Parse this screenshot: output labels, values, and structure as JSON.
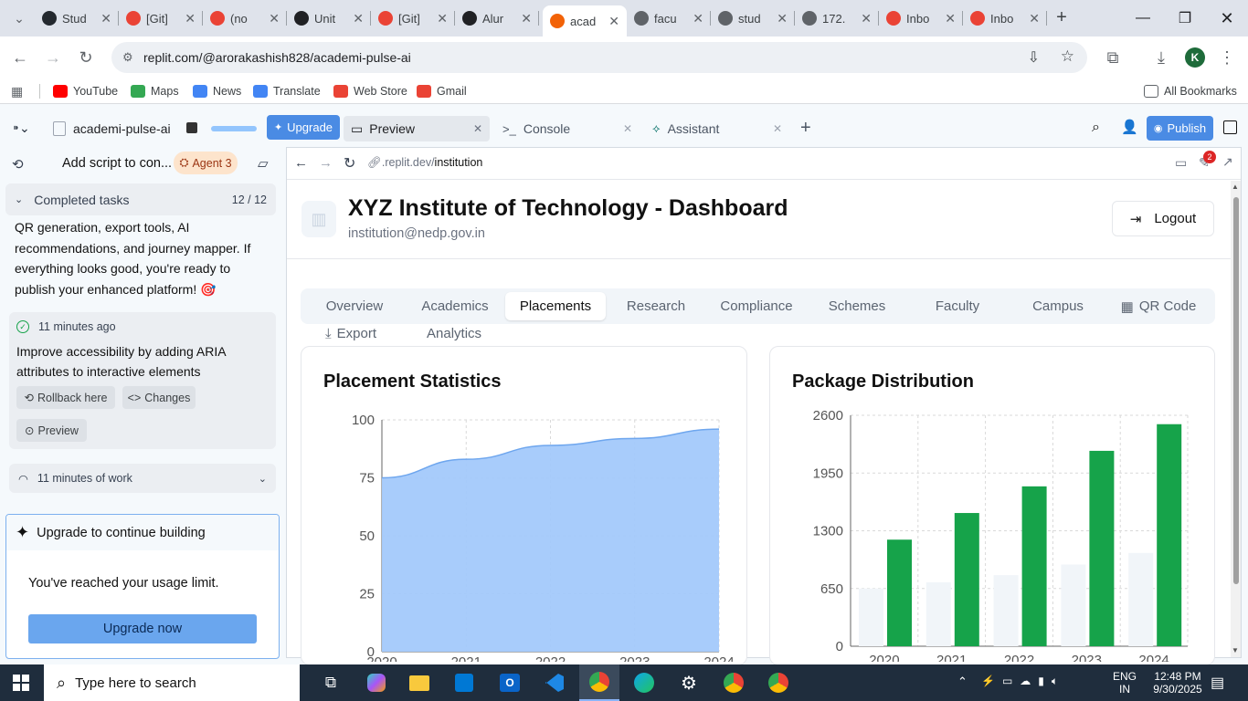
{
  "browser": {
    "tabs": [
      {
        "label": "Stud",
        "icon": "github-icon",
        "color": "#24292f"
      },
      {
        "label": "[Git]",
        "icon": "gmail-icon",
        "color": "#ea4335"
      },
      {
        "label": "(no",
        "icon": "gmail-icon",
        "color": "#ea4335"
      },
      {
        "label": "Unit",
        "icon": "openai-icon",
        "color": "#202124"
      },
      {
        "label": "[Git]",
        "icon": "gmail-icon",
        "color": "#ea4335"
      },
      {
        "label": "Alur",
        "icon": "openai-icon",
        "color": "#202124"
      },
      {
        "label": "acad",
        "icon": "replit-icon",
        "color": "#f26207"
      },
      {
        "label": "facu",
        "icon": "globe-icon",
        "color": "#5f6368"
      },
      {
        "label": "stud",
        "icon": "globe-icon",
        "color": "#5f6368"
      },
      {
        "label": "172.",
        "icon": "globe-icon",
        "color": "#5f6368"
      },
      {
        "label": "Inbo",
        "icon": "gmail-icon",
        "color": "#ea4335"
      },
      {
        "label": "Inbo",
        "icon": "gmail-icon",
        "color": "#ea4335"
      }
    ],
    "url": "replit.com/@arorakashish828/academi-pulse-ai",
    "profile_initial": "K",
    "bookmarks": [
      {
        "label": "YouTube",
        "color": "#ff0000"
      },
      {
        "label": "Maps",
        "color": "#34a853"
      },
      {
        "label": "News",
        "color": "#4285f4"
      },
      {
        "label": "Translate",
        "color": "#4285f4"
      },
      {
        "label": "Web Store",
        "color": "#ea4335"
      },
      {
        "label": "Gmail",
        "color": "#ea4335"
      }
    ],
    "all_bookmarks": "All Bookmarks"
  },
  "replit": {
    "project_name": "academi-pulse-ai",
    "upgrade": "Upgrade",
    "tabs": [
      "Preview",
      "Console",
      "Assistant"
    ],
    "publish": "Publish",
    "chat_title": "Add script to con...",
    "agent_badge": "Agent 3",
    "completed_tasks": "Completed tasks",
    "completed_count": "12 / 12",
    "message": "QR generation, export tools, AI recommendations, and journey mapper. If everything looks good, you're ready to publish your enhanced platform! 🎯",
    "checkpoint": {
      "time": "11 minutes ago",
      "title": "Improve accessibility by adding ARIA attributes to interactive elements",
      "rollback": "Rollback here",
      "changes": "Changes",
      "preview": "Preview"
    },
    "work_summary": "11 minutes of work",
    "upgrade_card": {
      "title": "Upgrade to continue building",
      "body": "You've reached your usage limit.",
      "button": "Upgrade now"
    },
    "preview_url_host": ".replit.dev/",
    "preview_url_path": "institution",
    "notif_count": "2"
  },
  "dashboard": {
    "title": "XYZ Institute of Technology - Dashboard",
    "email": "institution@nedp.gov.in",
    "logout": "Logout",
    "tabs": [
      "Overview",
      "Academics",
      "Placements",
      "Research",
      "Compliance",
      "Schemes",
      "Faculty",
      "Campus",
      "QR Code"
    ],
    "active_tab": "Placements",
    "tabs_row2": [
      "Export",
      "Analytics"
    ],
    "accent": "#16a34a",
    "area_color": "#a3c9fb"
  },
  "chart_data": [
    {
      "type": "area",
      "title": "Placement Statistics",
      "x": [
        "2020",
        "2021",
        "2022",
        "2023",
        "2024"
      ],
      "series": [
        {
          "values": [
            75,
            83,
            89,
            92,
            96
          ]
        }
      ],
      "ylim": [
        0,
        100
      ],
      "yticks": [
        0,
        25,
        50,
        75,
        100
      ],
      "grid": true
    },
    {
      "type": "bar",
      "title": "Package Distribution",
      "categories": [
        "2020",
        "2021",
        "2022",
        "2023",
        "2024"
      ],
      "series": [
        {
          "values": [
            650,
            720,
            800,
            920,
            1050
          ],
          "color": "#f1f5f9"
        },
        {
          "values": [
            1200,
            1500,
            1800,
            2200,
            2500
          ],
          "color": "#16a34a"
        }
      ],
      "ylim": [
        0,
        2600
      ],
      "yticks": [
        0,
        650,
        1300,
        1950,
        2600
      ],
      "grid": true
    }
  ],
  "taskbar": {
    "search_placeholder": "Type here to search",
    "lang1": "ENG",
    "lang2": "IN",
    "time": "12:48 PM",
    "date": "9/30/2025"
  }
}
